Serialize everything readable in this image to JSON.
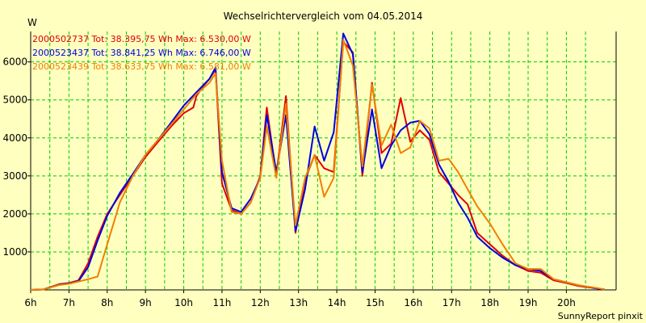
{
  "chart_data": {
    "type": "line",
    "title": "Wechselrichtervergleich vom 04.05.2014",
    "ylabel": "W",
    "footer": "SunnyReport pinxit",
    "x_ticks": [
      "6h",
      "7h",
      "8h",
      "9h",
      "10h",
      "11h",
      "12h",
      "13h",
      "14h",
      "15h",
      "16h",
      "17h",
      "18h",
      "19h",
      "20h"
    ],
    "y_ticks": [
      1000,
      2000,
      3000,
      4000,
      5000,
      6000
    ],
    "xlim": [
      6,
      21.3
    ],
    "ylim": [
      0,
      6800
    ],
    "grid": true,
    "legend_position": "top-left",
    "colors": {
      "background": "#ffffc0",
      "plot_background": "#ffffc0",
      "grid": "#00cc00",
      "axis": "#000000"
    },
    "series": [
      {
        "name": "2000502737 Tot: 38.395,75 Wh Max: 6.530,00 W",
        "color": "#e00000",
        "points": [
          [
            6.0,
            0
          ],
          [
            6.33,
            10
          ],
          [
            6.75,
            150
          ],
          [
            7.0,
            180
          ],
          [
            7.25,
            250
          ],
          [
            7.5,
            700
          ],
          [
            7.75,
            1400
          ],
          [
            8.0,
            2000
          ],
          [
            8.33,
            2500
          ],
          [
            8.67,
            3000
          ],
          [
            9.0,
            3500
          ],
          [
            9.33,
            3900
          ],
          [
            9.67,
            4300
          ],
          [
            10.0,
            4650
          ],
          [
            10.25,
            4800
          ],
          [
            10.33,
            5100
          ],
          [
            10.5,
            5350
          ],
          [
            10.67,
            5550
          ],
          [
            10.83,
            5800
          ],
          [
            11.0,
            2800
          ],
          [
            11.25,
            2100
          ],
          [
            11.5,
            2000
          ],
          [
            11.75,
            2300
          ],
          [
            12.0,
            3000
          ],
          [
            12.17,
            4800
          ],
          [
            12.42,
            3000
          ],
          [
            12.67,
            5100
          ],
          [
            12.92,
            1500
          ],
          [
            13.17,
            2900
          ],
          [
            13.42,
            3550
          ],
          [
            13.67,
            3200
          ],
          [
            13.92,
            3100
          ],
          [
            14.17,
            6530
          ],
          [
            14.42,
            6250
          ],
          [
            14.67,
            3000
          ],
          [
            14.92,
            5450
          ],
          [
            15.17,
            3600
          ],
          [
            15.42,
            3850
          ],
          [
            15.67,
            5050
          ],
          [
            15.92,
            3900
          ],
          [
            16.17,
            4200
          ],
          [
            16.42,
            3950
          ],
          [
            16.67,
            3100
          ],
          [
            16.92,
            2800
          ],
          [
            17.17,
            2500
          ],
          [
            17.42,
            2250
          ],
          [
            17.67,
            1500
          ],
          [
            18.0,
            1200
          ],
          [
            18.33,
            900
          ],
          [
            18.67,
            650
          ],
          [
            19.0,
            500
          ],
          [
            19.33,
            450
          ],
          [
            19.67,
            250
          ],
          [
            20.0,
            180
          ],
          [
            20.33,
            100
          ],
          [
            20.67,
            60
          ],
          [
            21.0,
            10
          ]
        ]
      },
      {
        "name": "2000523437 Tot: 38.841,25 Wh Max: 6.746,00 W",
        "color": "#0000e0",
        "points": [
          [
            6.0,
            0
          ],
          [
            6.33,
            10
          ],
          [
            6.75,
            140
          ],
          [
            7.0,
            170
          ],
          [
            7.25,
            230
          ],
          [
            7.5,
            600
          ],
          [
            7.75,
            1300
          ],
          [
            8.0,
            1950
          ],
          [
            8.33,
            2550
          ],
          [
            8.67,
            3050
          ],
          [
            9.0,
            3550
          ],
          [
            9.33,
            3950
          ],
          [
            9.67,
            4400
          ],
          [
            10.0,
            4850
          ],
          [
            10.33,
            5200
          ],
          [
            10.67,
            5550
          ],
          [
            10.83,
            5850
          ],
          [
            11.0,
            3100
          ],
          [
            11.25,
            2150
          ],
          [
            11.5,
            2050
          ],
          [
            11.75,
            2400
          ],
          [
            12.0,
            2950
          ],
          [
            12.17,
            4600
          ],
          [
            12.42,
            3100
          ],
          [
            12.67,
            4600
          ],
          [
            12.92,
            1550
          ],
          [
            13.17,
            2650
          ],
          [
            13.42,
            4300
          ],
          [
            13.67,
            3400
          ],
          [
            13.92,
            4150
          ],
          [
            14.17,
            6746
          ],
          [
            14.42,
            6200
          ],
          [
            14.67,
            3100
          ],
          [
            14.92,
            4750
          ],
          [
            15.17,
            3200
          ],
          [
            15.42,
            3800
          ],
          [
            15.67,
            4200
          ],
          [
            15.92,
            4400
          ],
          [
            16.17,
            4450
          ],
          [
            16.42,
            4100
          ],
          [
            16.67,
            3300
          ],
          [
            16.92,
            2850
          ],
          [
            17.17,
            2300
          ],
          [
            17.42,
            1900
          ],
          [
            17.67,
            1400
          ],
          [
            18.0,
            1100
          ],
          [
            18.33,
            850
          ],
          [
            18.67,
            650
          ],
          [
            19.0,
            550
          ],
          [
            19.33,
            500
          ],
          [
            19.67,
            280
          ],
          [
            20.0,
            200
          ],
          [
            20.33,
            120
          ],
          [
            20.67,
            60
          ],
          [
            21.0,
            10
          ]
        ]
      },
      {
        "name": "2000523439 Tot: 38.633,75 Wh Max: 6.581,00 W",
        "color": "#f08000",
        "points": [
          [
            6.0,
            0
          ],
          [
            6.33,
            10
          ],
          [
            6.75,
            130
          ],
          [
            7.0,
            160
          ],
          [
            7.25,
            220
          ],
          [
            7.5,
            280
          ],
          [
            7.75,
            350
          ],
          [
            8.0,
            1200
          ],
          [
            8.33,
            2300
          ],
          [
            8.67,
            3000
          ],
          [
            9.0,
            3550
          ],
          [
            9.33,
            3950
          ],
          [
            9.67,
            4350
          ],
          [
            10.0,
            4750
          ],
          [
            10.33,
            5150
          ],
          [
            10.67,
            5450
          ],
          [
            10.83,
            5700
          ],
          [
            11.0,
            3400
          ],
          [
            11.25,
            2050
          ],
          [
            11.5,
            2000
          ],
          [
            11.75,
            2300
          ],
          [
            12.0,
            2950
          ],
          [
            12.17,
            4300
          ],
          [
            12.42,
            2950
          ],
          [
            12.67,
            4900
          ],
          [
            12.92,
            1700
          ],
          [
            13.17,
            2950
          ],
          [
            13.42,
            3550
          ],
          [
            13.67,
            2450
          ],
          [
            13.92,
            2950
          ],
          [
            14.17,
            6581
          ],
          [
            14.42,
            5900
          ],
          [
            14.67,
            3250
          ],
          [
            14.92,
            5400
          ],
          [
            15.17,
            3800
          ],
          [
            15.42,
            4350
          ],
          [
            15.67,
            3600
          ],
          [
            15.92,
            3750
          ],
          [
            16.17,
            4450
          ],
          [
            16.42,
            4250
          ],
          [
            16.67,
            3400
          ],
          [
            16.92,
            3450
          ],
          [
            17.17,
            3100
          ],
          [
            17.42,
            2650
          ],
          [
            17.67,
            2200
          ],
          [
            18.0,
            1750
          ],
          [
            18.33,
            1200
          ],
          [
            18.67,
            700
          ],
          [
            19.0,
            550
          ],
          [
            19.33,
            550
          ],
          [
            19.67,
            280
          ],
          [
            20.0,
            200
          ],
          [
            20.33,
            120
          ],
          [
            20.67,
            70
          ],
          [
            21.0,
            15
          ]
        ]
      }
    ]
  }
}
